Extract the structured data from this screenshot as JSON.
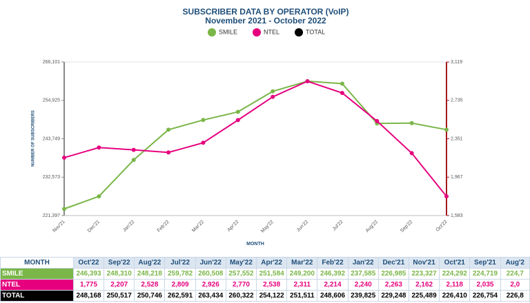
{
  "chart_data": {
    "type": "line",
    "title": "SUBSCRIBER DATA BY OPERATOR (VoIP)",
    "subtitle": "November 2021 - October 2022",
    "y_label": "NUMBER OF SUBSCRIBERS",
    "x_label": "MONTH",
    "categories": [
      "Nov'21",
      "Dec'21",
      "Jan'22",
      "Feb'22",
      "Mar'22",
      "Apr'22",
      "May'22",
      "Jun'22",
      "Jul'22",
      "Aug'22",
      "Sep'22",
      "Oct'22"
    ],
    "legend": [
      {
        "name": "SMILE",
        "color": "#7ab648"
      },
      {
        "name": "NTEL",
        "color": "#e6007e"
      },
      {
        "name": "TOTAL",
        "color": "#000000"
      }
    ],
    "series": [
      {
        "name": "SMILE",
        "color": "#7ab648",
        "axis": "y",
        "values": [
          223327,
          226985,
          237585,
          246392,
          249200,
          251584,
          257552,
          260508,
          259782,
          248218,
          248310,
          246393
        ]
      },
      {
        "name": "NTEL",
        "color": "#e6007e",
        "axis": "y2",
        "values": [
          2162,
          2263,
          2240,
          2214,
          2311,
          2538,
          2770,
          2926,
          2809,
          2528,
          2207,
          1775
        ]
      }
    ],
    "ylim": [
      221397,
      266101
    ],
    "yticks": [
      {
        "value": 221397,
        "label": "221,397"
      },
      {
        "value": 232573,
        "label": "232,573"
      },
      {
        "value": 243749,
        "label": "243,749"
      },
      {
        "value": 254925,
        "label": "254,925"
      },
      {
        "value": 266101,
        "label": "266,101"
      }
    ],
    "y2lim": [
      1583,
      3119
    ],
    "y2ticks": [
      {
        "value": 1583,
        "label": "1,583"
      },
      {
        "value": 1967,
        "label": "1,967"
      },
      {
        "value": 2351,
        "label": "2,351"
      },
      {
        "value": 2735,
        "label": "2,735"
      },
      {
        "value": 3119,
        "label": "3,119"
      }
    ]
  },
  "table": {
    "header": [
      "MONTH",
      "Oct'22",
      "Sep'22",
      "Aug'22",
      "Jul'22",
      "Jun'22",
      "May'22",
      "Apr'22",
      "Mar'22",
      "Feb'22",
      "Jan'22",
      "Dec'21",
      "Nov'21",
      "Oct'21",
      "Sep'21",
      "Aug'2"
    ],
    "rows": [
      [
        "SMILE",
        "246,393",
        "248,310",
        "248,218",
        "259,782",
        "260,508",
        "257,552",
        "251,584",
        "249,200",
        "246,392",
        "237,585",
        "226,985",
        "223,327",
        "224,292",
        "224,719",
        "224,7"
      ],
      [
        "NTEL",
        "1,775",
        "2,207",
        "2,528",
        "2,809",
        "2,926",
        "2,770",
        "2,538",
        "2,311",
        "2,214",
        "2,240",
        "2,263",
        "2,162",
        "2,118",
        "2,035",
        "2,0"
      ],
      [
        "TOTAL",
        "248,168",
        "250,517",
        "250,746",
        "262,591",
        "263,434",
        "260,322",
        "254,122",
        "251,511",
        "248,606",
        "239,825",
        "229,248",
        "225,489",
        "226,410",
        "226,754",
        "226,8"
      ]
    ]
  }
}
